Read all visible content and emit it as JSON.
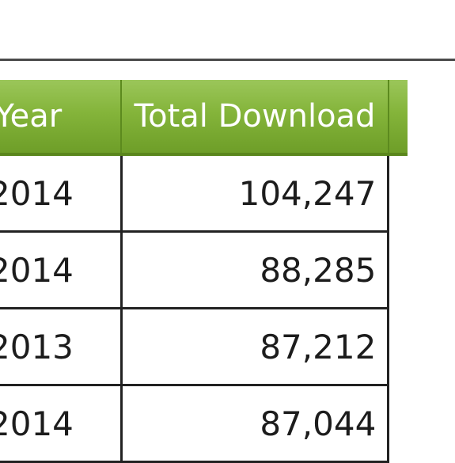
{
  "table": {
    "headers": {
      "year": "Year",
      "total_download": "Total Download"
    },
    "rows": [
      {
        "year": "2014",
        "total": "104,247"
      },
      {
        "year": "2014",
        "total": "88,285"
      },
      {
        "year": "2013",
        "total": "87,212"
      },
      {
        "year": "2014",
        "total": "87,044"
      }
    ]
  },
  "colors": {
    "header_green": "#84b43a",
    "header_text": "#ffffff",
    "grid_line": "#222222",
    "top_rule": "#4a4a4a"
  }
}
